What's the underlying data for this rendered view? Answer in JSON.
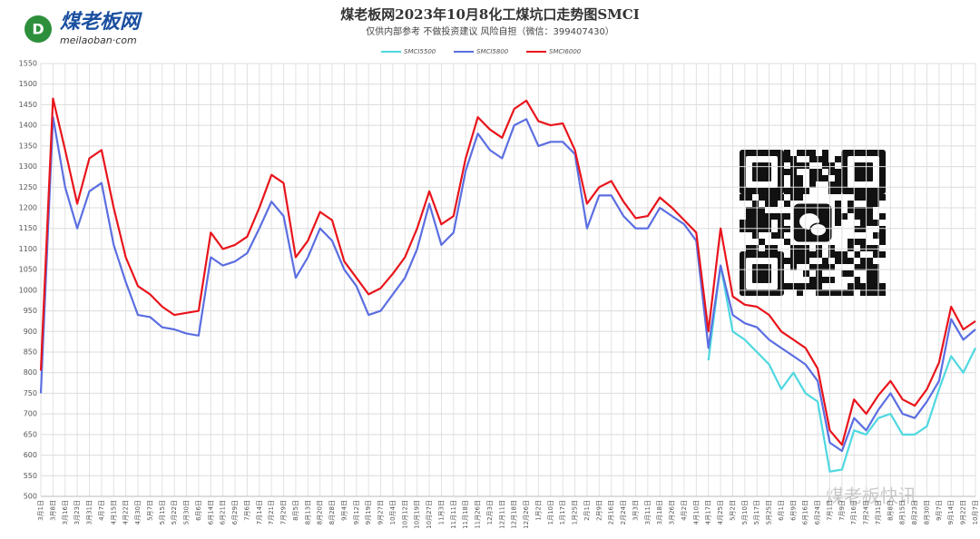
{
  "logo": {
    "name": "煤老板网",
    "site": "meilaoban·com"
  },
  "watermark": "煤老板快讯",
  "chart_data": {
    "type": "line",
    "title": "煤老板网2023年10月8化工煤坑口走势图SMCI",
    "subtitle": "仅供内部参考 不做投资建议 风险自担（微信：399407430）",
    "categories": [
      "3月1日",
      "3月8日",
      "3月16日",
      "3月23日",
      "3月31日",
      "4月7日",
      "4月15日",
      "4月22日",
      "4月30日",
      "5月7日",
      "5月15日",
      "5月22日",
      "5月30日",
      "6月6日",
      "6月14日",
      "6月21日",
      "6月29日",
      "7月6日",
      "7月14日",
      "7月21日",
      "7月29日",
      "8月5日",
      "8月13日",
      "8月20日",
      "8月28日",
      "9月4日",
      "9月12日",
      "9月19日",
      "9月27日",
      "10月4日",
      "10月12日",
      "10月19日",
      "10月27日",
      "11月3日",
      "11月11日",
      "11月18日",
      "11月26日",
      "12月3日",
      "12月11日",
      "12月18日",
      "12月26日",
      "1月2日",
      "1月10日",
      "1月17日",
      "1月25日",
      "2月1日",
      "2月9日",
      "2月16日",
      "2月24日",
      "3月3日",
      "3月11日",
      "3月18日",
      "3月26日",
      "4月2日",
      "4月10日",
      "4月17日",
      "4月25日",
      "5月2日",
      "5月10日",
      "5月17日",
      "5月25日",
      "6月1日",
      "6月9日",
      "6月16日",
      "6月24日",
      "7月1日",
      "7月9日",
      "7月16日",
      "7月24日",
      "7月31日",
      "8月8日",
      "8月15日",
      "8月23日",
      "8月30日",
      "9月7日",
      "9月14日",
      "9月22日",
      "10月7日"
    ],
    "series": [
      {
        "name": "SMCI5500",
        "color": "#4fd8e0",
        "values": [
          null,
          null,
          null,
          null,
          null,
          null,
          null,
          null,
          null,
          null,
          null,
          null,
          null,
          null,
          null,
          null,
          null,
          null,
          null,
          null,
          null,
          null,
          null,
          null,
          null,
          null,
          null,
          null,
          null,
          null,
          null,
          null,
          null,
          null,
          null,
          null,
          null,
          null,
          null,
          null,
          null,
          null,
          null,
          null,
          null,
          null,
          null,
          null,
          null,
          null,
          null,
          null,
          null,
          null,
          null,
          830,
          1060,
          900,
          880,
          850,
          820,
          760,
          800,
          750,
          730,
          560,
          565,
          660,
          650,
          690,
          700,
          650,
          650,
          670,
          760,
          840,
          800,
          860
        ]
      },
      {
        "name": "SMCI5800",
        "color": "#5b6ee1",
        "values": [
          750,
          1420,
          1250,
          1150,
          1240,
          1260,
          1110,
          1020,
          940,
          935,
          910,
          905,
          895,
          890,
          1080,
          1060,
          1070,
          1090,
          1150,
          1215,
          1180,
          1030,
          1080,
          1150,
          1120,
          1050,
          1010,
          940,
          950,
          990,
          1030,
          1100,
          1210,
          1110,
          1140,
          1290,
          1380,
          1340,
          1320,
          1400,
          1415,
          1350,
          1360,
          1360,
          1330,
          1150,
          1230,
          1230,
          1180,
          1150,
          1150,
          1200,
          1180,
          1160,
          1120,
          860,
          1060,
          940,
          920,
          910,
          880,
          860,
          840,
          820,
          780,
          630,
          610,
          690,
          660,
          710,
          750,
          700,
          690,
          730,
          780,
          930,
          880,
          905
        ]
      },
      {
        "name": "SMCI6000",
        "color": "#e8141b",
        "values": [
          805,
          1465,
          1340,
          1210,
          1320,
          1340,
          1200,
          1080,
          1010,
          990,
          960,
          940,
          945,
          950,
          1140,
          1100,
          1110,
          1130,
          1200,
          1280,
          1260,
          1080,
          1120,
          1190,
          1170,
          1070,
          1030,
          990,
          1005,
          1040,
          1080,
          1150,
          1240,
          1160,
          1180,
          1320,
          1420,
          1390,
          1370,
          1440,
          1460,
          1410,
          1400,
          1405,
          1340,
          1210,
          1250,
          1265,
          1215,
          1175,
          1180,
          1225,
          1200,
          1170,
          1140,
          900,
          1150,
          985,
          965,
          960,
          940,
          900,
          880,
          860,
          810,
          660,
          625,
          735,
          700,
          745,
          780,
          735,
          720,
          760,
          825,
          960,
          905,
          925
        ]
      }
    ],
    "ylim": [
      500,
      1550
    ],
    "yticks": [
      500,
      550,
      600,
      650,
      700,
      750,
      800,
      850,
      900,
      950,
      1000,
      1050,
      1100,
      1150,
      1200,
      1250,
      1300,
      1350,
      1400,
      1450,
      1500,
      1550
    ],
    "grid": true,
    "legend": "top"
  }
}
